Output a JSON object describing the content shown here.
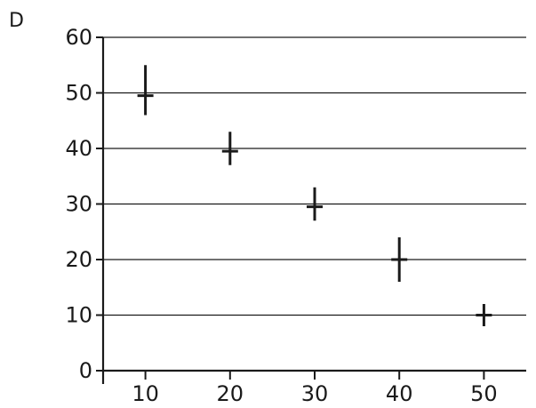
{
  "chart_data": {
    "type": "scatter",
    "panel_label": "D",
    "title": "",
    "xlabel": "",
    "ylabel": "",
    "x_ticks": [
      10,
      20,
      30,
      40,
      50
    ],
    "y_ticks": [
      0,
      10,
      20,
      30,
      40,
      50,
      60
    ],
    "xlim": [
      5,
      55
    ],
    "ylim": [
      0,
      60
    ],
    "grid": "horizontal",
    "legend": "none",
    "series": [
      {
        "points": [
          {
            "x": 10,
            "y": 49.5,
            "y_low": 46,
            "y_high": 55
          },
          {
            "x": 20,
            "y": 39.5,
            "y_low": 37,
            "y_high": 43
          },
          {
            "x": 30,
            "y": 29.5,
            "y_low": 27,
            "y_high": 33
          },
          {
            "x": 40,
            "y": 20,
            "y_low": 16,
            "y_high": 24
          },
          {
            "x": 50,
            "y": 10,
            "y_low": 8,
            "y_high": 12
          }
        ]
      }
    ],
    "colors": {
      "ink": "#1a1a1a",
      "background": "#ffffff"
    }
  }
}
